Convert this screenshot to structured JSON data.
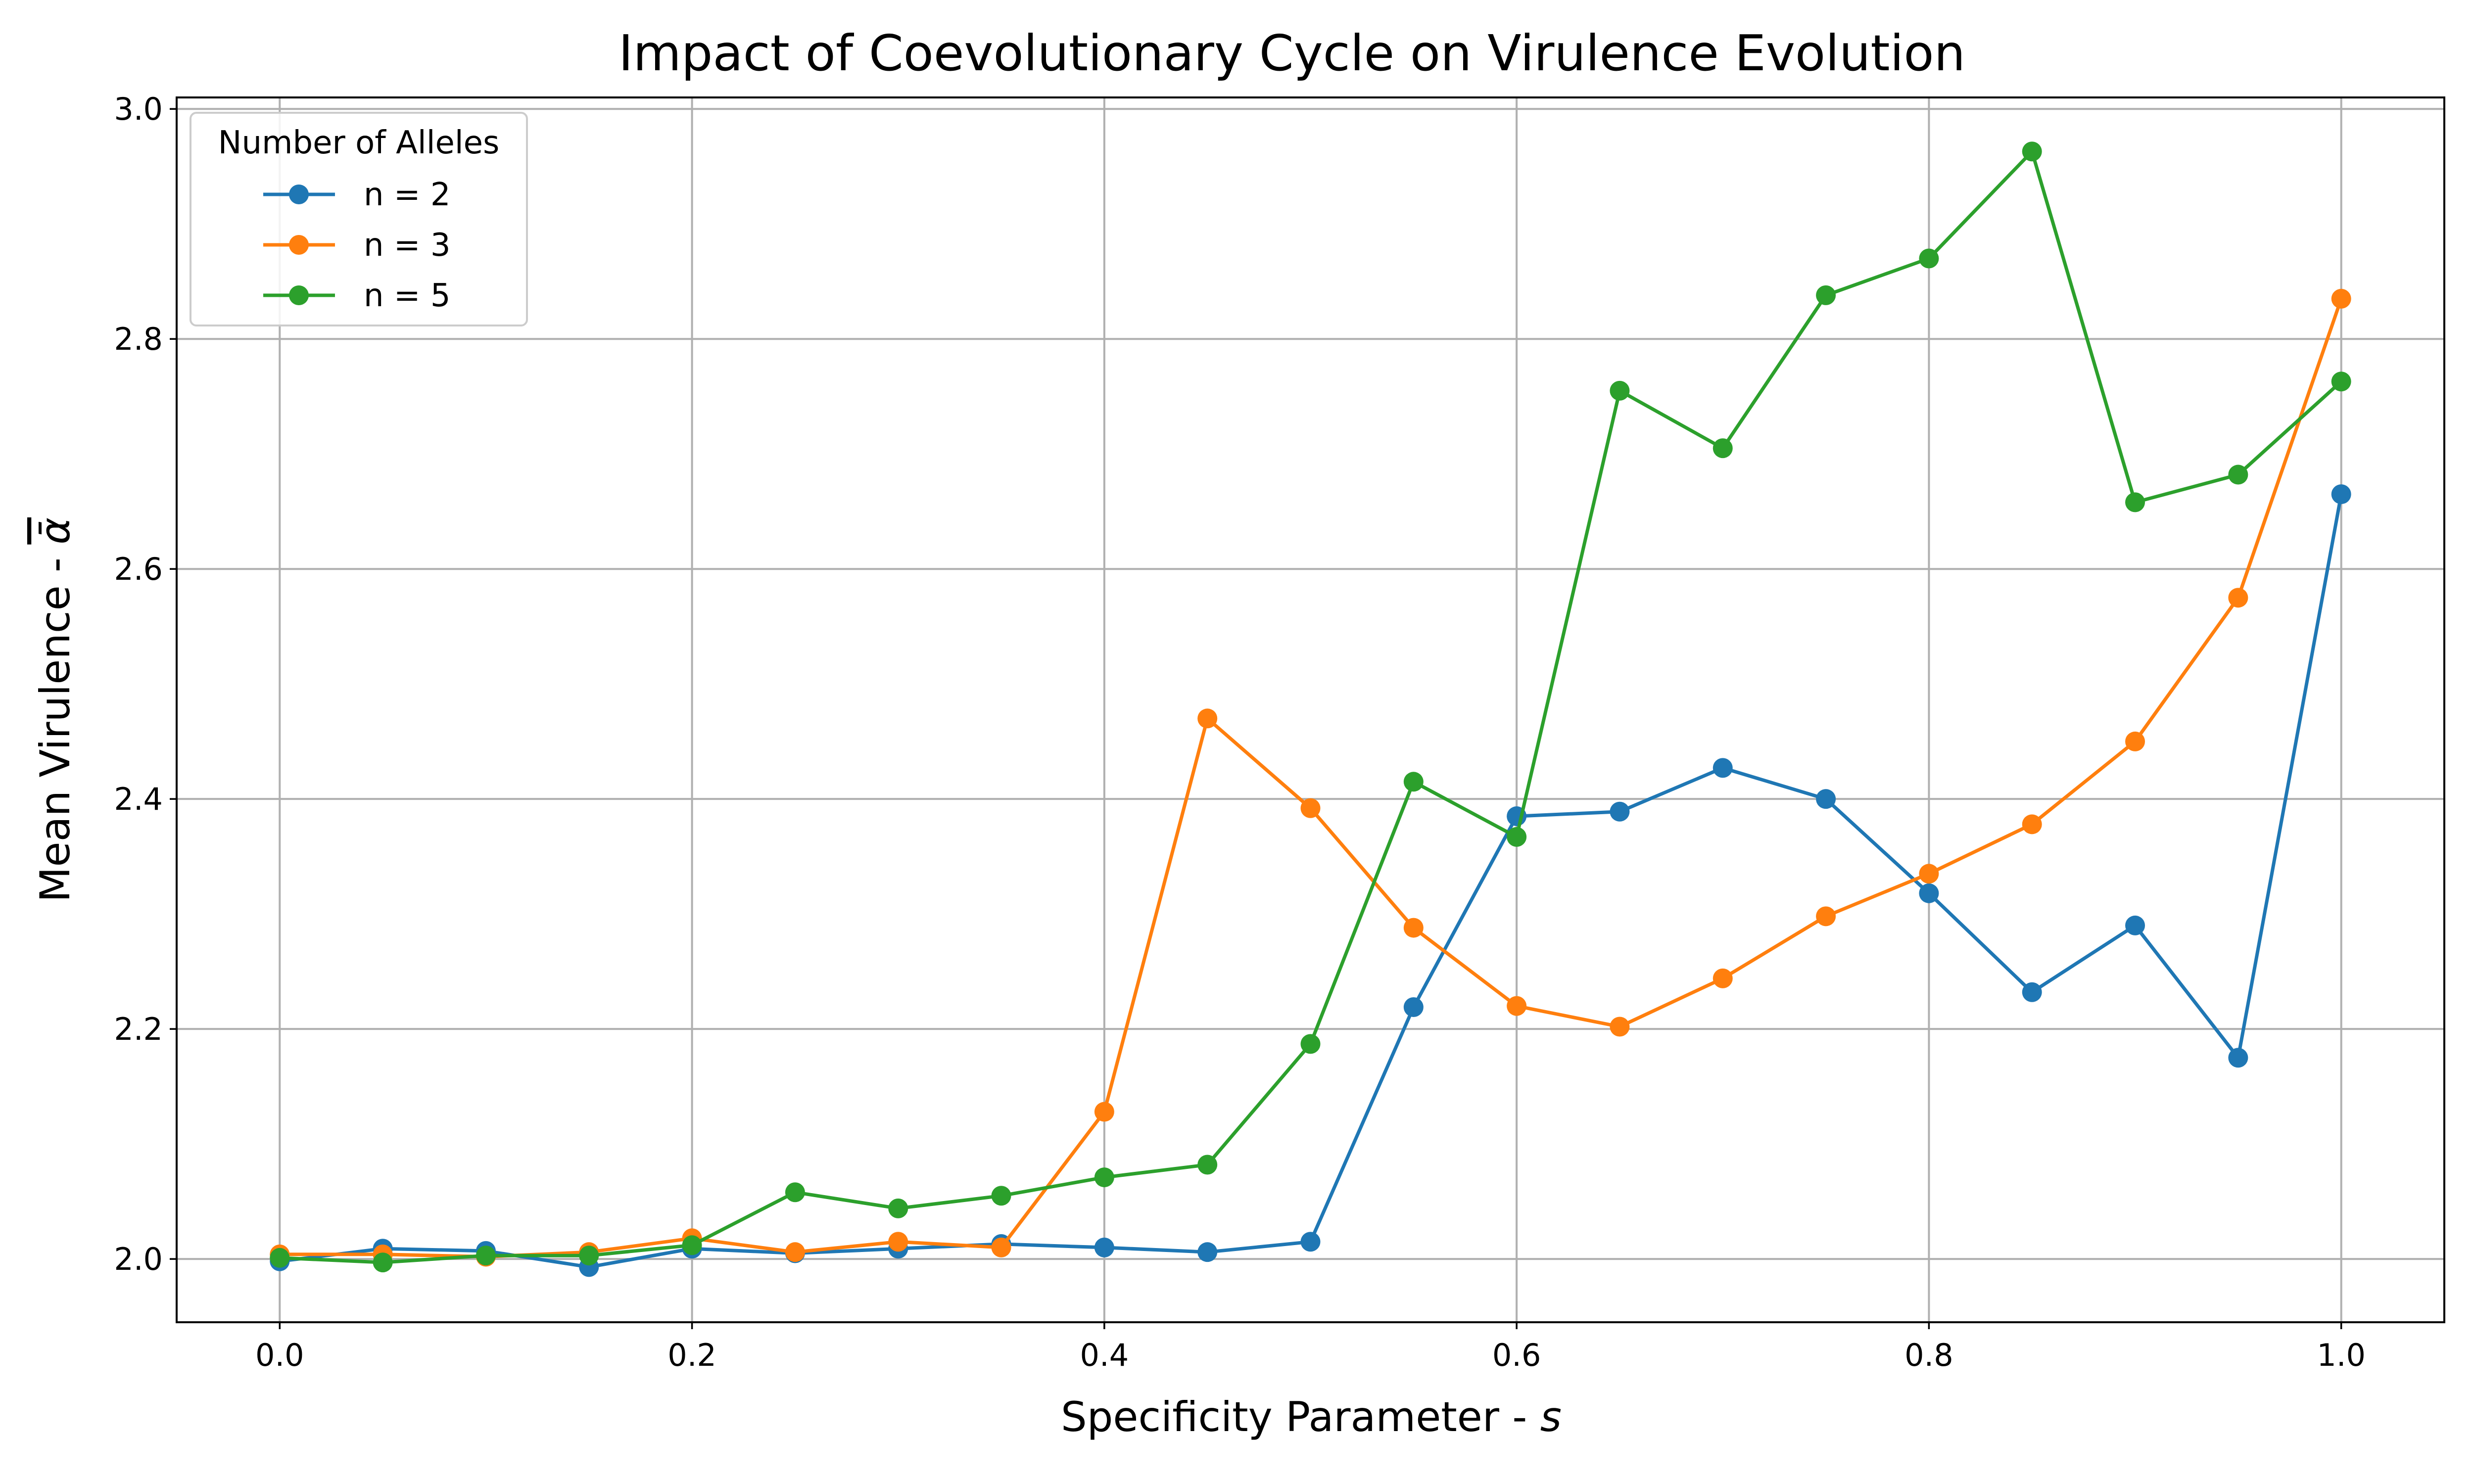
{
  "chart_data": {
    "type": "line",
    "title": "Impact of Coevolutionary Cycle on Virulence Evolution",
    "xlabel": "Specificity Parameter - s",
    "ylabel": "Mean Virulence - ᾱ",
    "xlim": [
      -0.05,
      1.05
    ],
    "ylim": [
      1.945,
      3.01
    ],
    "xticks": [
      0.0,
      0.2,
      0.4,
      0.6,
      0.8,
      1.0
    ],
    "xtick_labels": [
      "0.0",
      "0.2",
      "0.4",
      "0.6",
      "0.8",
      "1.0"
    ],
    "yticks": [
      2.0,
      2.2,
      2.4,
      2.6,
      2.8,
      3.0
    ],
    "ytick_labels": [
      "2.0",
      "2.2",
      "2.4",
      "2.6",
      "2.8",
      "3.0"
    ],
    "grid": true,
    "legend": {
      "title": "Number of Alleles",
      "placement": "top-left"
    },
    "x": [
      0.0,
      0.05,
      0.1,
      0.15,
      0.2,
      0.25,
      0.3,
      0.35,
      0.4,
      0.45,
      0.5,
      0.55,
      0.6,
      0.65,
      0.7,
      0.75,
      0.8,
      0.85,
      0.9,
      0.95,
      1.0
    ],
    "series": [
      {
        "name": "n = 2",
        "color": "#1f77b4",
        "values": [
          1.998,
          2.009,
          2.007,
          1.993,
          2.009,
          2.005,
          2.009,
          2.013,
          2.01,
          2.006,
          2.015,
          2.219,
          2.385,
          2.389,
          2.427,
          2.4,
          2.318,
          2.232,
          2.29,
          2.175,
          2.665
        ]
      },
      {
        "name": "n = 3",
        "color": "#ff7f0e",
        "values": [
          2.004,
          2.004,
          2.002,
          2.006,
          2.018,
          2.006,
          2.015,
          2.01,
          2.128,
          2.47,
          2.392,
          2.288,
          2.22,
          2.202,
          2.244,
          2.298,
          2.335,
          2.378,
          2.45,
          2.575,
          2.835
        ]
      },
      {
        "name": "n = 5",
        "color": "#2ca02c",
        "values": [
          2.001,
          1.997,
          2.003,
          2.003,
          2.012,
          2.058,
          2.044,
          2.055,
          2.071,
          2.082,
          2.187,
          2.415,
          2.367,
          2.755,
          2.705,
          2.838,
          2.87,
          2.963,
          2.658,
          2.682,
          2.763
        ]
      }
    ]
  }
}
